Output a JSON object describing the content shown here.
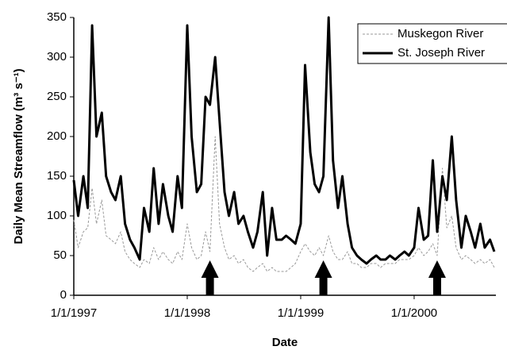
{
  "chart_data": {
    "type": "line",
    "x_label": "Date",
    "y_label": "Daily Mean Streamflow (m³ s⁻¹)",
    "x": [
      "1997-01-01",
      "1997-01-15",
      "1997-02-01",
      "1997-02-15",
      "1997-03-01",
      "1997-03-15",
      "1997-04-01",
      "1997-04-15",
      "1997-05-01",
      "1997-05-15",
      "1997-06-01",
      "1997-06-15",
      "1997-07-01",
      "1997-07-15",
      "1997-08-01",
      "1997-08-15",
      "1997-09-01",
      "1997-09-15",
      "1997-10-01",
      "1997-10-15",
      "1997-11-01",
      "1997-11-15",
      "1997-12-01",
      "1997-12-15",
      "1998-01-01",
      "1998-01-15",
      "1998-02-01",
      "1998-02-15",
      "1998-03-01",
      "1998-03-15",
      "1998-04-01",
      "1998-04-15",
      "1998-05-01",
      "1998-05-15",
      "1998-06-01",
      "1998-06-15",
      "1998-07-01",
      "1998-07-15",
      "1998-08-01",
      "1998-08-15",
      "1998-09-01",
      "1998-09-15",
      "1998-10-01",
      "1998-10-15",
      "1998-11-01",
      "1998-11-15",
      "1998-12-01",
      "1998-12-15",
      "1999-01-01",
      "1999-01-15",
      "1999-02-01",
      "1999-02-15",
      "1999-03-01",
      "1999-03-15",
      "1999-04-01",
      "1999-04-15",
      "1999-05-01",
      "1999-05-15",
      "1999-06-01",
      "1999-06-15",
      "1999-07-01",
      "1999-07-15",
      "1999-08-01",
      "1999-08-15",
      "1999-09-01",
      "1999-09-15",
      "1999-10-01",
      "1999-10-15",
      "1999-11-01",
      "1999-11-15",
      "1999-12-01",
      "1999-12-15",
      "2000-01-01",
      "2000-01-15",
      "2000-02-01",
      "2000-02-15",
      "2000-03-01",
      "2000-03-15",
      "2000-04-01",
      "2000-04-15",
      "2000-05-01",
      "2000-05-15",
      "2000-06-01",
      "2000-06-15",
      "2000-07-01",
      "2000-07-15",
      "2000-08-01",
      "2000-08-15",
      "2000-09-01",
      "2000-09-15"
    ],
    "series": [
      {
        "name": "Muskegon River",
        "color": "#999999",
        "dashed": true,
        "values": [
          95,
          60,
          80,
          85,
          135,
          90,
          120,
          75,
          70,
          65,
          80,
          55,
          45,
          40,
          35,
          45,
          40,
          60,
          45,
          55,
          45,
          40,
          55,
          45,
          90,
          60,
          45,
          50,
          80,
          55,
          200,
          90,
          60,
          45,
          50,
          40,
          45,
          35,
          30,
          35,
          40,
          30,
          35,
          30,
          30,
          30,
          35,
          40,
          55,
          65,
          55,
          50,
          60,
          50,
          75,
          55,
          45,
          45,
          55,
          40,
          40,
          35,
          35,
          40,
          40,
          35,
          40,
          40,
          40,
          45,
          45,
          45,
          50,
          60,
          50,
          55,
          65,
          50,
          160,
          85,
          100,
          60,
          45,
          50,
          45,
          40,
          45,
          40,
          45,
          35
        ]
      },
      {
        "name": "St. Joseph River",
        "color": "#000000",
        "dashed": false,
        "values": [
          145,
          100,
          150,
          110,
          340,
          200,
          230,
          150,
          130,
          120,
          150,
          90,
          70,
          60,
          45,
          110,
          80,
          160,
          90,
          140,
          100,
          80,
          150,
          110,
          340,
          200,
          130,
          140,
          250,
          240,
          300,
          220,
          130,
          100,
          130,
          90,
          100,
          80,
          60,
          80,
          130,
          50,
          110,
          70,
          70,
          75,
          70,
          65,
          90,
          290,
          180,
          140,
          130,
          150,
          350,
          170,
          110,
          150,
          90,
          60,
          50,
          45,
          40,
          45,
          50,
          45,
          45,
          50,
          45,
          50,
          55,
          50,
          60,
          110,
          70,
          75,
          170,
          80,
          150,
          120,
          200,
          120,
          60,
          100,
          80,
          60,
          90,
          60,
          70,
          55
        ]
      }
    ],
    "arrows": [
      "1998-03-15",
      "1999-03-15",
      "2000-03-15"
    ],
    "xlim": [
      "1997-01-01",
      "2000-09-20"
    ],
    "xticks": [
      {
        "value": "1997-01-01",
        "label": "1/1/1997"
      },
      {
        "value": "1998-01-01",
        "label": "1/1/1998"
      },
      {
        "value": "1999-01-01",
        "label": "1/1/1999"
      },
      {
        "value": "2000-01-01",
        "label": "1/1/2000"
      }
    ],
    "ylim": [
      0,
      350
    ],
    "yticks": [
      0,
      50,
      100,
      150,
      200,
      250,
      300,
      350
    ],
    "legend": "top-right"
  }
}
